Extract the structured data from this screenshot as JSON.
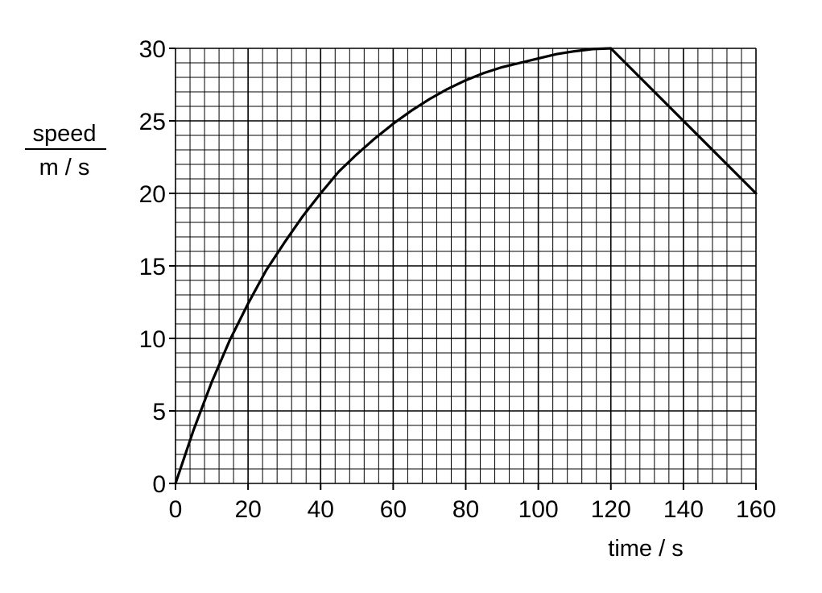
{
  "chart_data": {
    "type": "line",
    "title": "",
    "xlabel": "time / s",
    "ylabel_top": "speed",
    "ylabel_bottom": "m / s",
    "xlim": [
      0,
      160
    ],
    "ylim": [
      0,
      30
    ],
    "x_ticks": [
      0,
      20,
      40,
      60,
      80,
      100,
      120,
      140,
      160
    ],
    "y_ticks": [
      0,
      5,
      10,
      15,
      20,
      25,
      30
    ],
    "x_tick_labels": [
      "0",
      "20",
      "40",
      "60",
      "80",
      "100",
      "120",
      "140",
      "160"
    ],
    "y_tick_labels": [
      "0",
      "5",
      "10",
      "15",
      "20",
      "25",
      "30"
    ],
    "grid": true,
    "minor_grid_step": {
      "x": 4,
      "y": 1
    },
    "series": [
      {
        "color": "#000000",
        "x": [
          0,
          5,
          10,
          15,
          20,
          25,
          30,
          35,
          40,
          45,
          50,
          55,
          60,
          65,
          70,
          75,
          80,
          85,
          90,
          95,
          100,
          105,
          110,
          115,
          120,
          130,
          140,
          150,
          160
        ],
        "y": [
          0,
          3.7,
          7.0,
          9.9,
          12.4,
          14.7,
          16.6,
          18.4,
          20.0,
          21.5,
          22.7,
          23.8,
          24.8,
          25.7,
          26.5,
          27.2,
          27.8,
          28.3,
          28.7,
          29.0,
          29.3,
          29.6,
          29.8,
          29.95,
          30.0,
          27.5,
          25.0,
          22.5,
          20.0
        ]
      }
    ]
  }
}
